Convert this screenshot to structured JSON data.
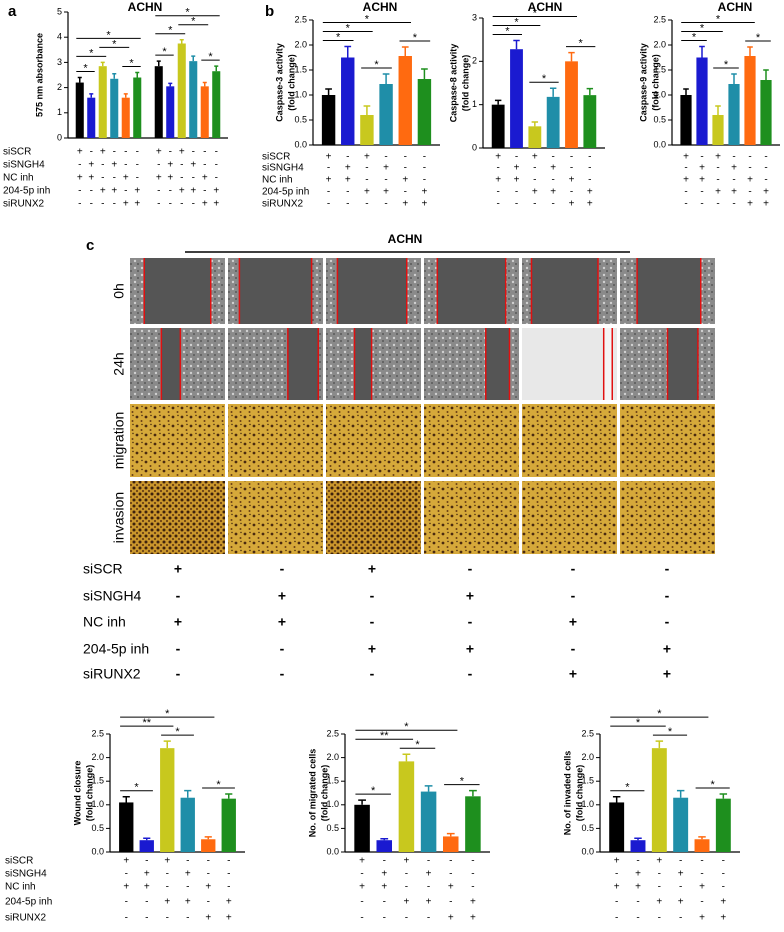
{
  "chart_data": [
    {
      "type": "bar",
      "panel_label": "a",
      "title": "ACHN",
      "y_label": [
        "575 nm absorbance"
      ],
      "values": [
        2.2,
        1.6,
        2.85,
        2.35,
        1.6,
        2.4,
        2.85,
        2.05,
        3.75,
        3.05,
        2.05,
        2.65
      ],
      "errors": [
        0.2,
        0.15,
        0.15,
        0.2,
        0.15,
        0.2,
        0.2,
        0.12,
        0.15,
        0.2,
        0.15,
        0.2
      ],
      "colors": [
        "#000000",
        "#1a1ad0",
        "#c8c81e",
        "#1f8ea8",
        "#ff6a10",
        "#1e8f1e",
        "#000000",
        "#1a1ad0",
        "#c8c81e",
        "#1f8ea8",
        "#ff6a10",
        "#1e8f1e"
      ],
      "ylim": [
        0,
        5
      ],
      "yticks": [
        0,
        1,
        2,
        3,
        4,
        5
      ],
      "condition_names": [
        "siSCR",
        "siSNGH4",
        "NC inh",
        "204-5p  inh",
        "siRUNX2"
      ],
      "condition_signs": [
        [
          "+",
          "-",
          "+",
          "-",
          "-",
          "-",
          "+",
          "-",
          "+",
          "-",
          "-",
          "-"
        ],
        [
          "-",
          "+",
          "-",
          "+",
          "-",
          "-",
          "-",
          "+",
          "-",
          "+",
          "-",
          "-"
        ],
        [
          "+",
          "+",
          "-",
          "-",
          "+",
          "-",
          "+",
          "+",
          "-",
          "-",
          "+",
          "-"
        ],
        [
          "-",
          "-",
          "+",
          "+",
          "-",
          "+",
          "-",
          "-",
          "+",
          "+",
          "-",
          "+"
        ],
        [
          "-",
          "-",
          "-",
          "-",
          "+",
          "+",
          "-",
          "-",
          "-",
          "-",
          "+",
          "+"
        ]
      ],
      "significance": [
        {
          "from": 0,
          "to": 1,
          "label": "*"
        },
        {
          "from": 4,
          "to": 5,
          "label": "*"
        },
        {
          "from": 0,
          "to": 2,
          "label": "*"
        },
        {
          "from": 2,
          "to": 4,
          "label": "*"
        },
        {
          "from": 0,
          "to": 5,
          "label": "*"
        },
        {
          "from": 6,
          "to": 7,
          "label": "*"
        },
        {
          "from": 10,
          "to": 11,
          "label": "*"
        },
        {
          "from": 6,
          "to": 8,
          "label": "*"
        },
        {
          "from": 8,
          "to": 10,
          "label": "*"
        },
        {
          "from": 6,
          "to": 11,
          "label": "*"
        }
      ]
    },
    {
      "type": "bar",
      "panel_label": "b",
      "title": "ACHN",
      "y_label": [
        "Caspase-3 activity",
        "(fold change)"
      ],
      "values": [
        1.0,
        1.75,
        0.6,
        1.22,
        1.78,
        1.32
      ],
      "errors": [
        0.12,
        0.22,
        0.18,
        0.2,
        0.18,
        0.2
      ],
      "colors": [
        "#000000",
        "#1a1ad0",
        "#c8c81e",
        "#1f8ea8",
        "#ff6a10",
        "#1e8f1e"
      ],
      "ylim": [
        0,
        2.5
      ],
      "yticks": [
        {
          "value": 0,
          "label": "0.0"
        },
        0.5,
        {
          "value": 1,
          "label": "1.0"
        },
        1.5,
        {
          "value": 2,
          "label": "2.0"
        },
        2.5
      ],
      "condition_names": [
        "siSCR",
        "siSNGH4",
        "NC inh",
        "204-5p  inh",
        "siRUNX2"
      ],
      "condition_signs": [
        [
          "+",
          "-",
          "+",
          "-",
          "-",
          "-"
        ],
        [
          "-",
          "+",
          "-",
          "+",
          "-",
          "-"
        ],
        [
          "+",
          "+",
          "-",
          "-",
          "+",
          "-"
        ],
        [
          "-",
          "-",
          "+",
          "+",
          "-",
          "+"
        ],
        [
          "-",
          "-",
          "-",
          "-",
          "+",
          "+"
        ]
      ],
      "significance": [
        {
          "from": 0,
          "to": 1,
          "label": "*"
        },
        {
          "from": 2,
          "to": 3,
          "label": "*"
        },
        {
          "from": 4,
          "to": 5,
          "label": "*"
        },
        {
          "from": 0,
          "to": 2,
          "label": "*"
        },
        {
          "from": 0,
          "to": 4,
          "label": "*"
        }
      ]
    },
    {
      "type": "bar",
      "title": "ACHN",
      "y_label": [
        "Caspase-8 activity",
        "(fold change)"
      ],
      "values": [
        1.0,
        2.28,
        0.5,
        1.18,
        2.0,
        1.22
      ],
      "errors": [
        0.1,
        0.2,
        0.1,
        0.2,
        0.2,
        0.15
      ],
      "colors": [
        "#000000",
        "#1a1ad0",
        "#c8c81e",
        "#1f8ea8",
        "#ff6a10",
        "#1e8f1e"
      ],
      "ylim": [
        0,
        3
      ],
      "yticks": [
        0,
        1,
        2,
        3
      ],
      "condition_signs": [
        [
          "+",
          "-",
          "+",
          "-",
          "-",
          "-"
        ],
        [
          "-",
          "+",
          "-",
          "+",
          "-",
          "-"
        ],
        [
          "+",
          "+",
          "-",
          "-",
          "+",
          "-"
        ],
        [
          "-",
          "-",
          "+",
          "+",
          "-",
          "+"
        ],
        [
          "-",
          "-",
          "-",
          "-",
          "+",
          "+"
        ]
      ],
      "significance": [
        {
          "from": 0,
          "to": 1,
          "label": "*"
        },
        {
          "from": 2,
          "to": 3,
          "label": "*"
        },
        {
          "from": 4,
          "to": 5,
          "label": "*"
        },
        {
          "from": 0,
          "to": 2,
          "label": "*"
        },
        {
          "from": 0,
          "to": 4,
          "label": "*"
        }
      ]
    },
    {
      "type": "bar",
      "title": "ACHN",
      "y_label": [
        "Caspase-9 activity",
        "(fold change)"
      ],
      "values": [
        1.0,
        1.75,
        0.6,
        1.22,
        1.78,
        1.3
      ],
      "errors": [
        0.12,
        0.22,
        0.18,
        0.2,
        0.18,
        0.2
      ],
      "colors": [
        "#000000",
        "#1a1ad0",
        "#c8c81e",
        "#1f8ea8",
        "#ff6a10",
        "#1e8f1e"
      ],
      "ylim": [
        0,
        2.5
      ],
      "yticks": [
        {
          "value": 0,
          "label": "0.0"
        },
        0.5,
        {
          "value": 1,
          "label": "1.0"
        },
        1.5,
        {
          "value": 2,
          "label": "2.0"
        },
        2.5
      ],
      "condition_signs": [
        [
          "+",
          "-",
          "+",
          "-",
          "-",
          "-"
        ],
        [
          "-",
          "+",
          "-",
          "+",
          "-",
          "-"
        ],
        [
          "+",
          "+",
          "-",
          "-",
          "+",
          "-"
        ],
        [
          "-",
          "-",
          "+",
          "+",
          "-",
          "+"
        ],
        [
          "-",
          "-",
          "-",
          "-",
          "+",
          "+"
        ]
      ],
      "significance": [
        {
          "from": 0,
          "to": 1,
          "label": "*"
        },
        {
          "from": 2,
          "to": 3,
          "label": "*"
        },
        {
          "from": 4,
          "to": 5,
          "label": "*"
        },
        {
          "from": 0,
          "to": 2,
          "label": "*"
        },
        {
          "from": 0,
          "to": 4,
          "label": "*"
        }
      ]
    },
    {
      "type": "bar",
      "y_label": [
        "Wound closure",
        "(fold change)"
      ],
      "values": [
        1.05,
        0.25,
        2.2,
        1.15,
        0.27,
        1.13
      ],
      "errors": [
        0.12,
        0.04,
        0.15,
        0.15,
        0.05,
        0.1
      ],
      "colors": [
        "#000000",
        "#1a1ad0",
        "#c8c81e",
        "#1f8ea8",
        "#ff6a10",
        "#1e8f1e"
      ],
      "ylim": [
        0,
        2.5
      ],
      "yticks": [
        {
          "value": 0,
          "label": "0.0"
        },
        0.5,
        {
          "value": 1,
          "label": "1.0"
        },
        1.5,
        {
          "value": 2,
          "label": "2.0"
        },
        2.5
      ],
      "condition_names": [
        "siSCR",
        "siSNGH4",
        "NC inh",
        "204-5p  inh",
        "siRUNX2"
      ],
      "condition_signs": [
        [
          "+",
          "-",
          "+",
          "-",
          "-",
          "-"
        ],
        [
          "-",
          "+",
          "-",
          "+",
          "-",
          "-"
        ],
        [
          "+",
          "+",
          "-",
          "-",
          "+",
          "-"
        ],
        [
          "-",
          "-",
          "+",
          "+",
          "-",
          "+"
        ],
        [
          "-",
          "-",
          "-",
          "-",
          "+",
          "+"
        ]
      ],
      "significance": [
        {
          "from": 0,
          "to": 1,
          "label": "*"
        },
        {
          "from": 2,
          "to": 3,
          "label": "*"
        },
        {
          "from": 4,
          "to": 5,
          "label": "*"
        },
        {
          "from": 0,
          "to": 2,
          "label": "**"
        },
        {
          "from": 0,
          "to": 4,
          "label": "*"
        }
      ]
    },
    {
      "type": "bar",
      "y_label": [
        "No. of migrated cells",
        "(fold change)"
      ],
      "values": [
        1.0,
        0.25,
        1.92,
        1.28,
        0.33,
        1.18
      ],
      "errors": [
        0.1,
        0.03,
        0.15,
        0.12,
        0.06,
        0.12
      ],
      "colors": [
        "#000000",
        "#1a1ad0",
        "#c8c81e",
        "#1f8ea8",
        "#ff6a10",
        "#1e8f1e"
      ],
      "ylim": [
        0,
        2.5
      ],
      "yticks": [
        {
          "value": 0,
          "label": "0.0"
        },
        0.5,
        {
          "value": 1,
          "label": "1.0"
        },
        1.5,
        {
          "value": 2,
          "label": "2.0"
        },
        2.5
      ],
      "condition_signs": [
        [
          "+",
          "-",
          "+",
          "-",
          "-",
          "-"
        ],
        [
          "-",
          "+",
          "-",
          "+",
          "-",
          "-"
        ],
        [
          "+",
          "+",
          "-",
          "-",
          "+",
          "-"
        ],
        [
          "-",
          "-",
          "+",
          "+",
          "-",
          "+"
        ],
        [
          "-",
          "-",
          "-",
          "-",
          "+",
          "+"
        ]
      ],
      "significance": [
        {
          "from": 0,
          "to": 1,
          "label": "*"
        },
        {
          "from": 2,
          "to": 3,
          "label": "*"
        },
        {
          "from": 4,
          "to": 5,
          "label": "*"
        },
        {
          "from": 0,
          "to": 2,
          "label": "**"
        },
        {
          "from": 0,
          "to": 4,
          "label": "*"
        }
      ]
    },
    {
      "type": "bar",
      "y_label": [
        "No. of invaded cells",
        "(fold change)"
      ],
      "values": [
        1.05,
        0.25,
        2.2,
        1.15,
        0.27,
        1.13
      ],
      "errors": [
        0.12,
        0.04,
        0.15,
        0.15,
        0.05,
        0.1
      ],
      "colors": [
        "#000000",
        "#1a1ad0",
        "#c8c81e",
        "#1f8ea8",
        "#ff6a10",
        "#1e8f1e"
      ],
      "ylim": [
        0,
        2.5
      ],
      "yticks": [
        {
          "value": 0,
          "label": "0.0"
        },
        0.5,
        {
          "value": 1,
          "label": "1.0"
        },
        1.5,
        {
          "value": 2,
          "label": "2.0"
        },
        2.5
      ],
      "condition_signs": [
        [
          "+",
          "-",
          "+",
          "-",
          "-",
          "-"
        ],
        [
          "-",
          "+",
          "-",
          "+",
          "-",
          "-"
        ],
        [
          "+",
          "+",
          "-",
          "-",
          "+",
          "-"
        ],
        [
          "-",
          "-",
          "+",
          "+",
          "-",
          "+"
        ],
        [
          "-",
          "-",
          "-",
          "-",
          "+",
          "+"
        ]
      ],
      "significance": [
        {
          "from": 0,
          "to": 1,
          "label": "*"
        },
        {
          "from": 2,
          "to": 3,
          "label": "*"
        },
        {
          "from": 4,
          "to": 5,
          "label": "*"
        },
        {
          "from": 0,
          "to": 2,
          "label": "*"
        },
        {
          "from": 0,
          "to": 4,
          "label": "*"
        }
      ]
    }
  ],
  "micrograph_panel": {
    "panel_label": "c",
    "title": "ACHN",
    "row_labels": [
      "0h",
      "24h",
      "migration",
      "invasion"
    ],
    "condition_names": [
      "siSCR",
      "siSNGH4",
      "NC inh",
      "204-5p  inh",
      "siRUNX2"
    ],
    "condition_signs": [
      [
        "+",
        "-",
        "+",
        "-",
        "-",
        "-"
      ],
      [
        "-",
        "+",
        "-",
        "+",
        "-",
        "-"
      ],
      [
        "+",
        "+",
        "-",
        "-",
        "+",
        "-"
      ],
      [
        "-",
        "-",
        "+",
        "+",
        "-",
        "+"
      ],
      [
        "-",
        "-",
        "-",
        "-",
        "+",
        "+"
      ]
    ]
  }
}
